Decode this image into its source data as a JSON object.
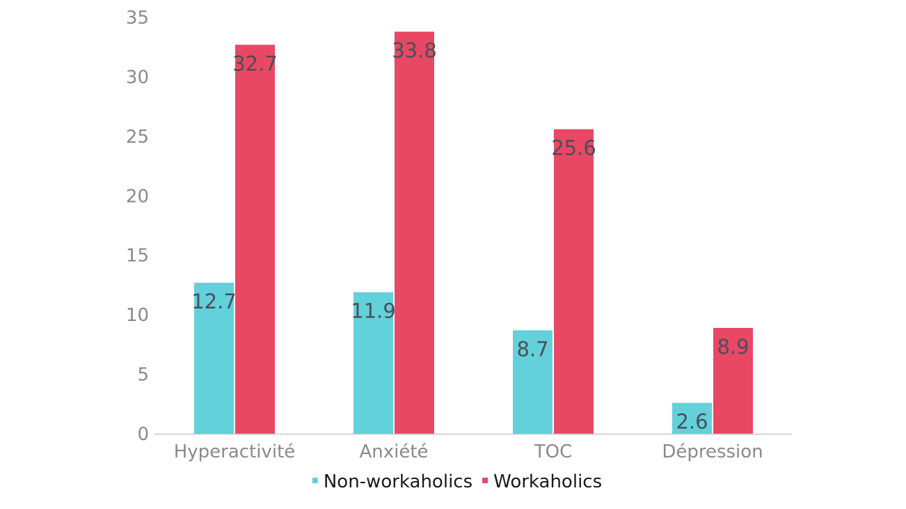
{
  "chart_data": {
    "type": "bar",
    "title": "",
    "xlabel": "",
    "ylabel": "",
    "categories": [
      "Hyperactivité",
      "Anxiété",
      "TOC",
      "Dépression"
    ],
    "series": [
      {
        "name": "Non-workaholics",
        "color": "#62d1da",
        "values": [
          12.7,
          11.9,
          8.7,
          2.6
        ]
      },
      {
        "name": "Workaholics",
        "color": "#e84864",
        "values": [
          32.7,
          33.8,
          25.6,
          8.9
        ]
      }
    ],
    "ylim": [
      0,
      35
    ],
    "yticks": [
      0,
      5,
      10,
      15,
      20,
      25,
      30,
      35
    ],
    "grid": false,
    "legend": "bottom-center",
    "data_labels": true
  }
}
